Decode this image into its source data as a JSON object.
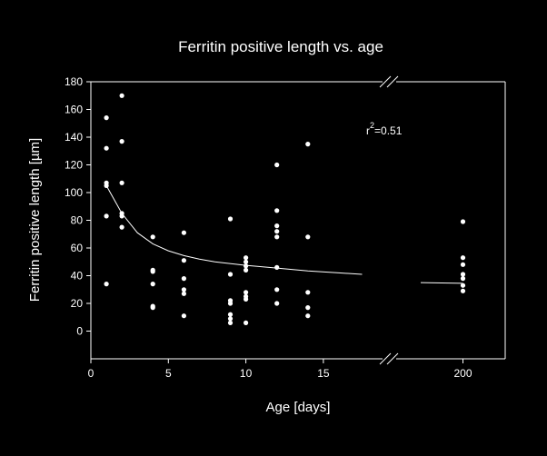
{
  "chart_data": {
    "type": "scatter",
    "title": "Ferritin positive length vs. age",
    "xlabel": "Age [days]",
    "ylabel": "Ferritin positive length [µm]",
    "ylim": [
      -20,
      180
    ],
    "xlim_main": [
      0,
      17
    ],
    "xlim_broken": [
      195,
      203
    ],
    "axis_break": true,
    "grid": false,
    "y_ticks": [
      0,
      20,
      40,
      60,
      80,
      100,
      120,
      140,
      160,
      180
    ],
    "x_ticks_main": [
      0,
      5,
      10,
      15
    ],
    "x_ticks_broken": [
      200
    ],
    "annotation": {
      "base": "r",
      "sup": "2",
      "rest": "=0.51"
    },
    "colors": {
      "background": "#000000",
      "foreground": "#ffffff"
    },
    "series": [
      {
        "points": [
          [
            1,
            154
          ],
          [
            1,
            132
          ],
          [
            1,
            107
          ],
          [
            1,
            105
          ],
          [
            1,
            83
          ],
          [
            1,
            34
          ],
          [
            2,
            170
          ],
          [
            2,
            137
          ],
          [
            2,
            107
          ],
          [
            2,
            85
          ],
          [
            2,
            83
          ],
          [
            2,
            75
          ],
          [
            4,
            68
          ],
          [
            4,
            44
          ],
          [
            4,
            43
          ],
          [
            4,
            34
          ],
          [
            4,
            17
          ],
          [
            4,
            18
          ],
          [
            6,
            71
          ],
          [
            6,
            51
          ],
          [
            6,
            38
          ],
          [
            6,
            30
          ],
          [
            6,
            27
          ],
          [
            6,
            11
          ],
          [
            9,
            81
          ],
          [
            9,
            41
          ],
          [
            9,
            22
          ],
          [
            9,
            20
          ],
          [
            9,
            12
          ],
          [
            9,
            9
          ],
          [
            9,
            6
          ],
          [
            10,
            53
          ],
          [
            10,
            50
          ],
          [
            10,
            47
          ],
          [
            10,
            44
          ],
          [
            10,
            28
          ],
          [
            10,
            25
          ],
          [
            10,
            23
          ],
          [
            10,
            6
          ],
          [
            12,
            120
          ],
          [
            12,
            87
          ],
          [
            12,
            76
          ],
          [
            12,
            72
          ],
          [
            12,
            68
          ],
          [
            12,
            46
          ],
          [
            12,
            30
          ],
          [
            12,
            20
          ],
          [
            14,
            135
          ],
          [
            14,
            68
          ],
          [
            14,
            28
          ],
          [
            14,
            17
          ],
          [
            14,
            11
          ],
          [
            200,
            79
          ],
          [
            200,
            53
          ],
          [
            200,
            48
          ],
          [
            200,
            41
          ],
          [
            200,
            38
          ],
          [
            200,
            33
          ],
          [
            200,
            29
          ]
        ]
      }
    ],
    "fit_line": {
      "main": [
        [
          1,
          105
        ],
        [
          1.5,
          95
        ],
        [
          2,
          85
        ],
        [
          3,
          71
        ],
        [
          4,
          63
        ],
        [
          5,
          58
        ],
        [
          6,
          54.5
        ],
        [
          7,
          52
        ],
        [
          8,
          50
        ],
        [
          10,
          47.5
        ],
        [
          12,
          45.5
        ],
        [
          14,
          43.5
        ],
        [
          16,
          42
        ],
        [
          17.5,
          41
        ]
      ],
      "broken": [
        [
          197,
          35
        ],
        [
          200,
          34.5
        ]
      ]
    }
  }
}
